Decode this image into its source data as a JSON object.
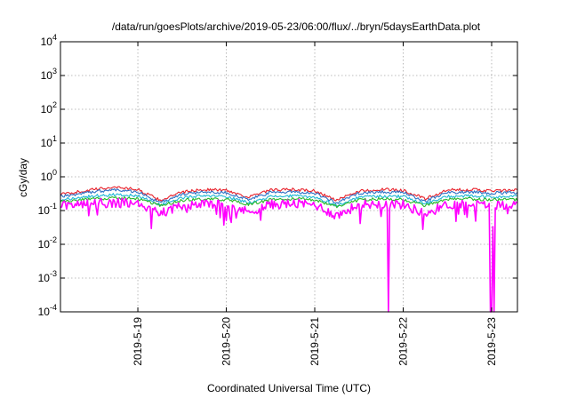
{
  "chart_data": {
    "type": "line",
    "title": "/data/run/goesPlots/archive/2019-05-23/06:00/flux/../bryn/5daysEarthData.plot",
    "xlabel": "Coordinated Universal Time (UTC)",
    "ylabel": "cGy/day",
    "y_scale": "log",
    "ylim": [
      0.0001,
      10000
    ],
    "xlim": [
      "2019-05-18T03:00",
      "2019-05-23T07:00"
    ],
    "x_ticks": [
      "2019-5-19",
      "2019-5-20",
      "2019-5-21",
      "2019-5-22",
      "2019-5-23"
    ],
    "y_ticks": [
      {
        "base": "10",
        "exp": "-4",
        "value": 0.0001
      },
      {
        "base": "10",
        "exp": "-3",
        "value": 0.001
      },
      {
        "base": "10",
        "exp": "-2",
        "value": 0.01
      },
      {
        "base": "10",
        "exp": "-1",
        "value": 0.1
      },
      {
        "base": "10",
        "exp": "0",
        "value": 1
      },
      {
        "base": "10",
        "exp": "1",
        "value": 10
      },
      {
        "base": "10",
        "exp": "2",
        "value": 100
      },
      {
        "base": "10",
        "exp": "3",
        "value": 1000
      },
      {
        "base": "10",
        "exp": "4",
        "value": 10000
      }
    ],
    "grid": true,
    "legend": "none",
    "dips_to_floor": [
      "2019-05-21T20:00",
      "2019-05-22T23:50",
      "2019-05-23T00:40"
    ],
    "series": [
      {
        "color": "#e8202a",
        "values": [
          [
            "2019-05-18T03:00",
            0.3
          ],
          [
            "2019-05-18T12:00",
            0.42
          ],
          [
            "2019-05-18T18:00",
            0.5
          ],
          [
            "2019-05-19T00:00",
            0.42
          ],
          [
            "2019-05-19T06:00",
            0.2
          ],
          [
            "2019-05-19T12:00",
            0.35
          ],
          [
            "2019-05-19T18:00",
            0.42
          ],
          [
            "2019-05-20T00:00",
            0.4
          ],
          [
            "2019-05-20T06:00",
            0.25
          ],
          [
            "2019-05-20T12:00",
            0.4
          ],
          [
            "2019-05-20T18:00",
            0.42
          ],
          [
            "2019-05-21T00:00",
            0.38
          ],
          [
            "2019-05-21T06:00",
            0.2
          ],
          [
            "2019-05-21T12:00",
            0.38
          ],
          [
            "2019-05-21T18:00",
            0.42
          ],
          [
            "2019-05-22T00:00",
            0.4
          ],
          [
            "2019-05-22T06:00",
            0.22
          ],
          [
            "2019-05-22T12:00",
            0.4
          ],
          [
            "2019-05-22T18:00",
            0.42
          ],
          [
            "2019-05-23T00:00",
            0.38
          ],
          [
            "2019-05-23T07:00",
            0.4
          ]
        ]
      },
      {
        "color": "#2d6fc4",
        "values": [
          [
            "2019-05-18T03:00",
            0.26
          ],
          [
            "2019-05-18T12:00",
            0.36
          ],
          [
            "2019-05-18T18:00",
            0.42
          ],
          [
            "2019-05-19T00:00",
            0.36
          ],
          [
            "2019-05-19T06:00",
            0.17
          ],
          [
            "2019-05-19T12:00",
            0.3
          ],
          [
            "2019-05-19T18:00",
            0.36
          ],
          [
            "2019-05-20T00:00",
            0.34
          ],
          [
            "2019-05-20T06:00",
            0.21
          ],
          [
            "2019-05-20T12:00",
            0.34
          ],
          [
            "2019-05-20T18:00",
            0.36
          ],
          [
            "2019-05-21T00:00",
            0.33
          ],
          [
            "2019-05-21T06:00",
            0.17
          ],
          [
            "2019-05-21T12:00",
            0.33
          ],
          [
            "2019-05-21T18:00",
            0.36
          ],
          [
            "2019-05-22T00:00",
            0.34
          ],
          [
            "2019-05-22T06:00",
            0.19
          ],
          [
            "2019-05-22T12:00",
            0.34
          ],
          [
            "2019-05-22T18:00",
            0.36
          ],
          [
            "2019-05-23T00:00",
            0.33
          ],
          [
            "2019-05-23T07:00",
            0.34
          ]
        ]
      },
      {
        "color": "#1fb7d4",
        "values": [
          [
            "2019-05-18T03:00",
            0.21
          ],
          [
            "2019-05-18T12:00",
            0.27
          ],
          [
            "2019-05-18T18:00",
            0.3
          ],
          [
            "2019-05-19T00:00",
            0.27
          ],
          [
            "2019-05-19T06:00",
            0.15
          ],
          [
            "2019-05-19T12:00",
            0.24
          ],
          [
            "2019-05-19T18:00",
            0.27
          ],
          [
            "2019-05-20T00:00",
            0.26
          ],
          [
            "2019-05-20T06:00",
            0.17
          ],
          [
            "2019-05-20T12:00",
            0.26
          ],
          [
            "2019-05-20T18:00",
            0.27
          ],
          [
            "2019-05-21T00:00",
            0.25
          ],
          [
            "2019-05-21T06:00",
            0.14
          ],
          [
            "2019-05-21T12:00",
            0.25
          ],
          [
            "2019-05-21T18:00",
            0.27
          ],
          [
            "2019-05-22T00:00",
            0.26
          ],
          [
            "2019-05-22T06:00",
            0.16
          ],
          [
            "2019-05-22T12:00",
            0.26
          ],
          [
            "2019-05-22T18:00",
            0.27
          ],
          [
            "2019-05-23T00:00",
            0.25
          ],
          [
            "2019-05-23T07:00",
            0.26
          ]
        ]
      },
      {
        "color": "#2ab82a",
        "values": [
          [
            "2019-05-18T03:00",
            0.19
          ],
          [
            "2019-05-18T12:00",
            0.22
          ],
          [
            "2019-05-18T18:00",
            0.24
          ],
          [
            "2019-05-19T00:00",
            0.22
          ],
          [
            "2019-05-19T06:00",
            0.14
          ],
          [
            "2019-05-19T12:00",
            0.2
          ],
          [
            "2019-05-19T18:00",
            0.22
          ],
          [
            "2019-05-20T00:00",
            0.21
          ],
          [
            "2019-05-20T06:00",
            0.15
          ],
          [
            "2019-05-20T12:00",
            0.21
          ],
          [
            "2019-05-20T18:00",
            0.22
          ],
          [
            "2019-05-21T00:00",
            0.21
          ],
          [
            "2019-05-21T06:00",
            0.13
          ],
          [
            "2019-05-21T12:00",
            0.21
          ],
          [
            "2019-05-21T18:00",
            0.22
          ],
          [
            "2019-05-22T00:00",
            0.21
          ],
          [
            "2019-05-22T06:00",
            0.14
          ],
          [
            "2019-05-22T12:00",
            0.21
          ],
          [
            "2019-05-22T18:00",
            0.22
          ],
          [
            "2019-05-23T00:00",
            0.21
          ],
          [
            "2019-05-23T07:00",
            0.21
          ]
        ]
      },
      {
        "color": "#ff00ff",
        "values": [
          [
            "2019-05-18T03:00",
            0.14
          ],
          [
            "2019-05-18T12:00",
            0.16
          ],
          [
            "2019-05-18T18:00",
            0.17
          ],
          [
            "2019-05-19T00:00",
            0.16
          ],
          [
            "2019-05-19T06:00",
            0.08
          ],
          [
            "2019-05-19T12:00",
            0.14
          ],
          [
            "2019-05-19T18:00",
            0.16
          ],
          [
            "2019-05-20T00:00",
            0.15
          ],
          [
            "2019-05-20T06:00",
            0.09
          ],
          [
            "2019-05-20T12:00",
            0.15
          ],
          [
            "2019-05-20T18:00",
            0.16
          ],
          [
            "2019-05-21T00:00",
            0.15
          ],
          [
            "2019-05-21T06:00",
            0.07
          ],
          [
            "2019-05-21T12:00",
            0.15
          ],
          [
            "2019-05-21T18:00",
            0.16
          ],
          [
            "2019-05-22T00:00",
            0.15
          ],
          [
            "2019-05-22T06:00",
            0.08
          ],
          [
            "2019-05-22T12:00",
            0.15
          ],
          [
            "2019-05-22T18:00",
            0.16
          ],
          [
            "2019-05-23T00:00",
            0.14
          ],
          [
            "2019-05-23T07:00",
            0.15
          ]
        ]
      }
    ]
  }
}
